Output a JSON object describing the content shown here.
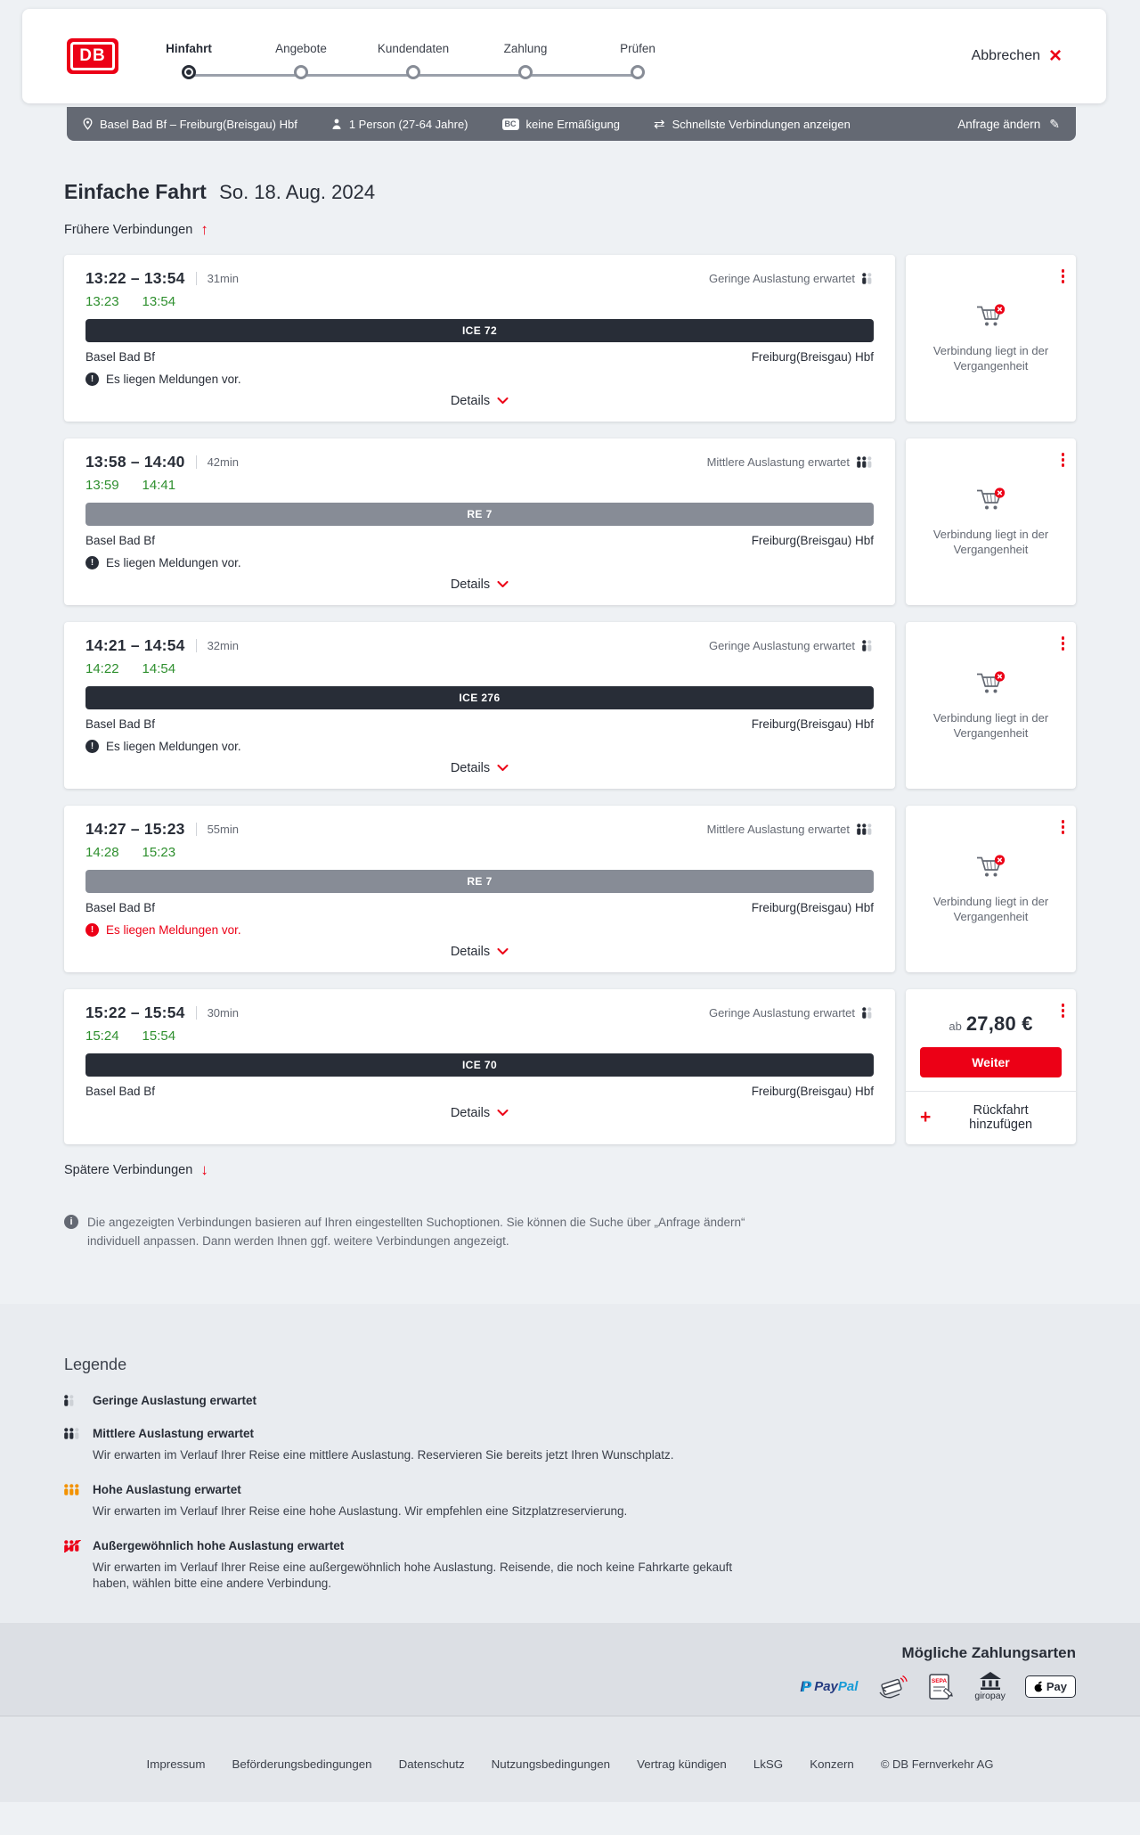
{
  "colors": {
    "brand": "#ec0016",
    "dark": "#282d37",
    "gray": "#646973",
    "muted": "#cdd1d6",
    "orange": "#f39200",
    "green": "#2e8f2e"
  },
  "icons": {
    "cancel_x": "×",
    "swap": "⇄",
    "pencil": "✎",
    "earlier_arrow": "↑",
    "later_arrow": "↓",
    "add_plus": "+",
    "alert": "!",
    "info": "i"
  },
  "header": {
    "logo_text": "DB",
    "cancel_label": "Abbrechen",
    "steps": [
      {
        "label": "Hinfahrt",
        "active": true
      },
      {
        "label": "Angebote",
        "active": false
      },
      {
        "label": "Kundendaten",
        "active": false
      },
      {
        "label": "Zahlung",
        "active": false
      },
      {
        "label": "Prüfen",
        "active": false
      }
    ]
  },
  "query_bar": {
    "route": "Basel Bad Bf – Freiburg(Breisgau) Hbf",
    "passengers": "1 Person (27-64 Jahre)",
    "bahncard_badge": "BC",
    "discount": "keine Ermäßigung",
    "sort": "Schnellste Verbindungen anzeigen",
    "edit_label": "Anfrage ändern"
  },
  "page": {
    "title": "Einfache Fahrt",
    "date": "So. 18. Aug. 2024",
    "earlier_label": "Frühere Verbindungen",
    "later_label": "Spätere Verbindungen",
    "info_text": "Die angezeigten Verbindungen basieren auf Ihren eingestellten Suchoptionen. Sie können die Suche über „Anfrage ändern“ individuell anpassen. Dann werden Ihnen ggf. weitere Verbindungen angezeigt."
  },
  "connections": [
    {
      "time_range": "13:22 – 13:54",
      "duration": "31min",
      "actual_departure": "13:23",
      "actual_arrival": "13:54",
      "occupancy": "Geringe Auslastung erwartet",
      "occupancy_level": "low",
      "train": "ICE 72",
      "train_type": "ice",
      "from": "Basel Bad Bf",
      "to": "Freiburg(Breisgau) Hbf",
      "notice": "Es liegen Meldungen vor.",
      "notice_alert": false,
      "details_label": "Details",
      "side": {
        "type": "past",
        "text": "Verbindung liegt in der Vergangenheit"
      }
    },
    {
      "time_range": "13:58 – 14:40",
      "duration": "42min",
      "actual_departure": "13:59",
      "actual_arrival": "14:41",
      "occupancy": "Mittlere Auslastung erwartet",
      "occupancy_level": "medium",
      "train": "RE 7",
      "train_type": "re",
      "from": "Basel Bad Bf",
      "to": "Freiburg(Breisgau) Hbf",
      "notice": "Es liegen Meldungen vor.",
      "notice_alert": false,
      "details_label": "Details",
      "side": {
        "type": "past",
        "text": "Verbindung liegt in der Vergangenheit"
      }
    },
    {
      "time_range": "14:21 – 14:54",
      "duration": "32min",
      "actual_departure": "14:22",
      "actual_arrival": "14:54",
      "occupancy": "Geringe Auslastung erwartet",
      "occupancy_level": "low",
      "train": "ICE 276",
      "train_type": "ice",
      "from": "Basel Bad Bf",
      "to": "Freiburg(Breisgau) Hbf",
      "notice": "Es liegen Meldungen vor.",
      "notice_alert": false,
      "details_label": "Details",
      "side": {
        "type": "past",
        "text": "Verbindung liegt in der Vergangenheit"
      }
    },
    {
      "time_range": "14:27 – 15:23",
      "duration": "55min",
      "actual_departure": "14:28",
      "actual_arrival": "15:23",
      "occupancy": "Mittlere Auslastung erwartet",
      "occupancy_level": "medium",
      "train": "RE 7",
      "train_type": "re",
      "from": "Basel Bad Bf",
      "to": "Freiburg(Breisgau) Hbf",
      "notice": "Es liegen Meldungen vor.",
      "notice_alert": true,
      "details_label": "Details",
      "side": {
        "type": "past",
        "text": "Verbindung liegt in der Vergangenheit"
      }
    },
    {
      "time_range": "15:22 – 15:54",
      "duration": "30min",
      "actual_departure": "15:24",
      "actual_arrival": "15:54",
      "occupancy": "Geringe Auslastung erwartet",
      "occupancy_level": "low",
      "train": "ICE 70",
      "train_type": "ice",
      "from": "Basel Bad Bf",
      "to": "Freiburg(Breisgau) Hbf",
      "notice": "",
      "notice_alert": false,
      "details_label": "Details",
      "side": {
        "type": "price",
        "price_prefix": "ab",
        "price": "27,80 €",
        "cta": "Weiter",
        "add_return": "Rückfahrt hinzufügen"
      }
    }
  ],
  "legend": {
    "title": "Legende",
    "items": [
      {
        "label": "Geringe Auslastung erwartet",
        "level": "low",
        "description": ""
      },
      {
        "label": "Mittlere Auslastung erwartet",
        "level": "medium",
        "description": "Wir erwarten im Verlauf Ihrer Reise eine mittlere Auslastung. Reservieren Sie bereits jetzt Ihren Wunschplatz."
      },
      {
        "label": "Hohe Auslastung erwartet",
        "level": "high",
        "description": "Wir erwarten im Verlauf Ihrer Reise eine hohe Auslastung. Wir empfehlen eine Sitzplatzreservierung."
      },
      {
        "label": "Außergewöhnlich hohe Auslastung erwartet",
        "level": "exceptional",
        "description": "Wir erwarten im Verlauf Ihrer Reise eine außergewöhnlich hohe Auslastung. Reisende, die noch keine Fahrkarte gekauft haben, wählen bitte eine andere Verbindung."
      }
    ]
  },
  "payment": {
    "title": "Mögliche Zahlungsarten",
    "methods": [
      {
        "id": "paypal",
        "label": "PayPal"
      },
      {
        "id": "kreditkarte",
        "label": ""
      },
      {
        "id": "sepa",
        "label": "SEPA"
      },
      {
        "id": "giropay",
        "label": "giropay"
      },
      {
        "id": "applepay",
        "label": "Pay"
      }
    ]
  },
  "footer": {
    "links": [
      "Impressum",
      "Beförderungsbedingungen",
      "Datenschutz",
      "Nutzungsbedingungen",
      "Vertrag kündigen",
      "LkSG",
      "Konzern"
    ],
    "copyright": "© DB Fernverkehr AG"
  }
}
